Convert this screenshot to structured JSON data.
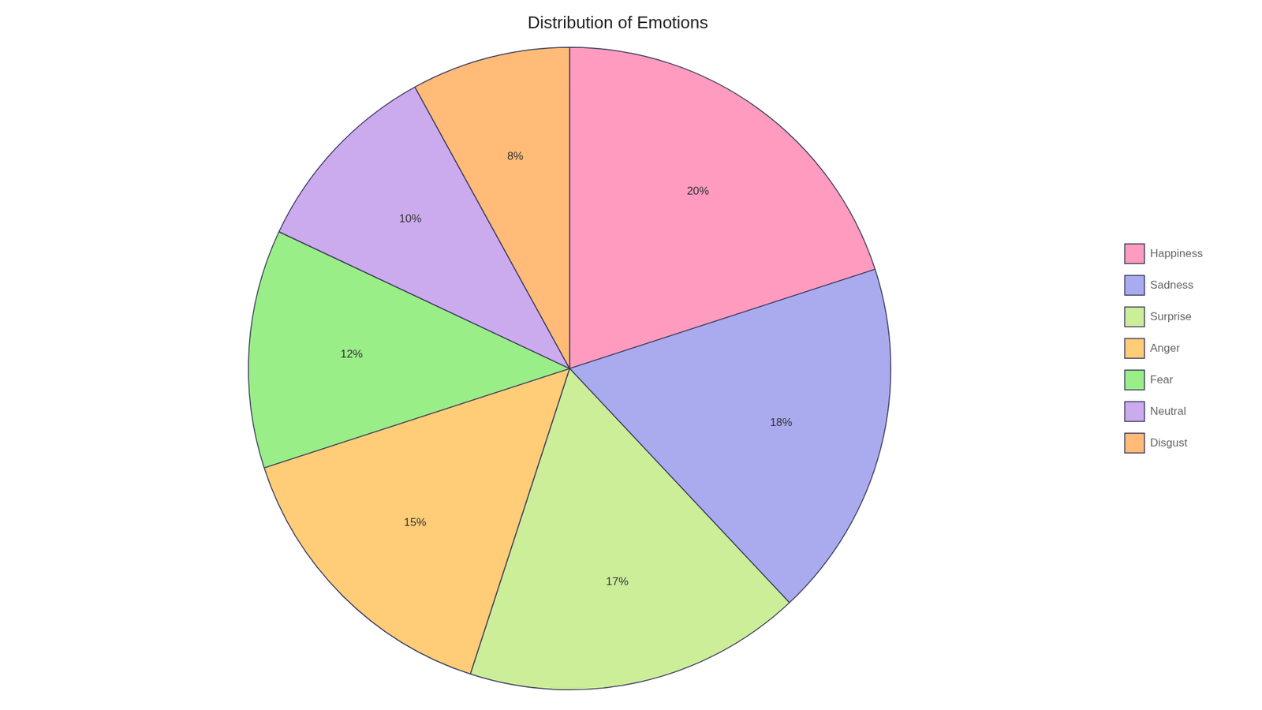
{
  "chart_data": {
    "type": "pie",
    "title": "Distribution of Emotions",
    "categories": [
      "Happiness",
      "Sadness",
      "Surprise",
      "Anger",
      "Fear",
      "Neutral",
      "Disgust"
    ],
    "values": [
      20,
      18,
      17,
      15,
      12,
      10,
      8
    ],
    "value_labels": [
      "20%",
      "18%",
      "17%",
      "15%",
      "12%",
      "10%",
      "8%"
    ],
    "colors": [
      "#FF9BBF",
      "#AAAAEE",
      "#CCEE99",
      "#FFCC77",
      "#99EE88",
      "#CCAAEE",
      "#FFBB77"
    ],
    "data_labels": true,
    "legend": "right"
  }
}
